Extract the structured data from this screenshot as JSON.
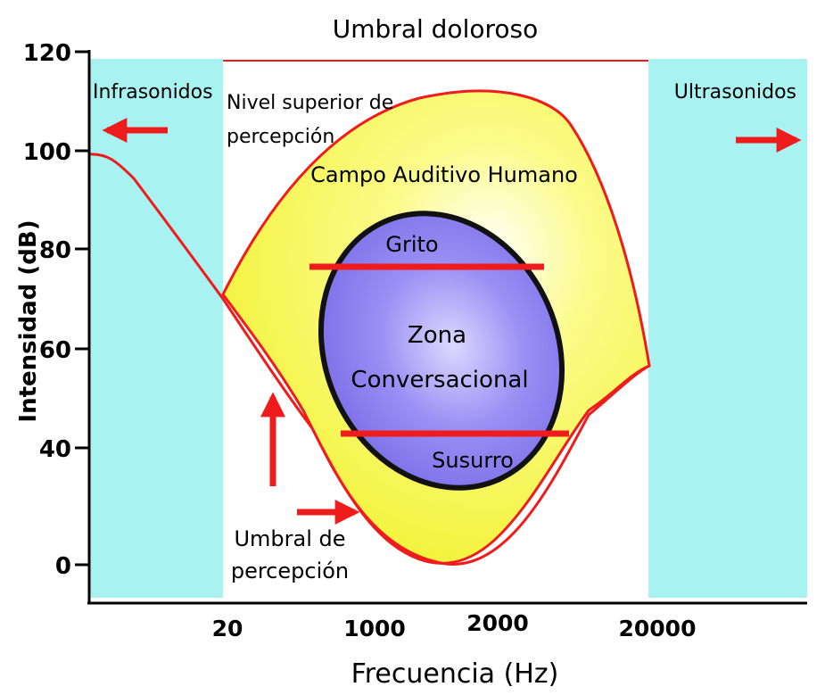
{
  "title": "Umbral doloroso",
  "axes": {
    "ylabel": "Intensidad (dB)",
    "xlabel": "Frecuencia (Hz)",
    "y_ticks": [
      "120",
      "100",
      "80",
      "60",
      "40",
      "0"
    ],
    "x_ticks": [
      "20",
      "1000",
      "2000",
      "20000"
    ]
  },
  "regions": {
    "infra": "Infrasonidos",
    "ultra": "Ultrasonidos",
    "field": "Campo Auditivo Humano",
    "zone_line1": "Zona",
    "zone_line2": "Conversacional",
    "shout": "Grito",
    "whisper": "Susurro"
  },
  "annotations": {
    "upper_line1": "Nivel superior de",
    "upper_line2": "percepción",
    "lower_line1": "Umbral de",
    "lower_line2": "percepción"
  },
  "colors": {
    "infra_ultra_band": "#a8f2f2",
    "hearing_field": "#fafa5a",
    "conversation_zone": "#8c7ff0",
    "curve": "#ee1c1c",
    "arrow": "#ee1c1c"
  }
}
